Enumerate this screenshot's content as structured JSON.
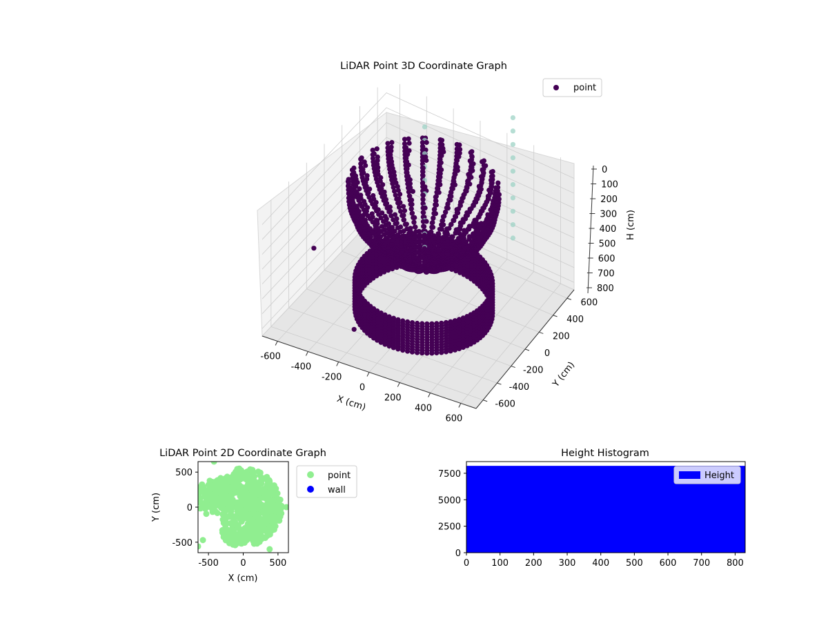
{
  "colors": {
    "point3d": "#440154",
    "point3d_aux": "#9ed3c5",
    "point2d": "#90ee90",
    "wall": "#0000ff",
    "hist": "#0000ff",
    "pane": "#f2f2f2",
    "grid": "#cccccc"
  },
  "chart_data": [
    {
      "type": "scatter",
      "projection": "3d",
      "title": "LiDAR Point 3D Coordinate Graph",
      "xlabel": "X (cm)",
      "ylabel": "Y (cm)",
      "zlabel": "H (cm)",
      "xlim": [
        -700,
        700
      ],
      "ylim": [
        -700,
        700
      ],
      "zlim": [
        0,
        850
      ],
      "z_inverted": true,
      "xticks": [
        "-600",
        "-400",
        "-200",
        "0",
        "200",
        "400",
        "600"
      ],
      "yticks": [
        "-600",
        "-400",
        "-200",
        "0",
        "200",
        "400",
        "600"
      ],
      "zticks": [
        "0",
        "100",
        "200",
        "300",
        "400",
        "500",
        "600",
        "700",
        "800"
      ],
      "legend": {
        "placement": "upper-right",
        "entries": [
          "point"
        ]
      },
      "grid": true,
      "series": [
        {
          "name": "point",
          "description": "dense curved strips rising from a ring of radius ~450 cm around the origin, plus a low cylindrical wall band",
          "ring_radius": 450,
          "strip_count": 26,
          "wall_radius": 420,
          "wall_height_range": [
            650,
            850
          ],
          "outliers": [
            [
              -680,
              -150,
              600
            ],
            [
              -560,
              120,
              540
            ],
            [
              -420,
              260,
              560
            ],
            [
              -250,
              -420,
              820
            ],
            [
              -180,
              -380,
              790
            ]
          ]
        },
        {
          "name": "",
          "description": "sparse vertical columns of light points",
          "columns": [
            [
              0,
              0
            ],
            [
              420,
              380
            ]
          ],
          "column_height_range": [
            0,
            850
          ]
        }
      ]
    },
    {
      "type": "scatter",
      "title": "LiDAR Point 2D Coordinate Graph",
      "xlabel": "X (cm)",
      "ylabel": "Y (cm)",
      "xlim": [
        -650,
        650
      ],
      "ylim": [
        -650,
        650
      ],
      "xticks": [
        "-500",
        "0",
        "500"
      ],
      "yticks": [
        "500",
        "0",
        "-500"
      ],
      "legend": {
        "placement": "outside-right",
        "entries": [
          "point",
          "wall"
        ]
      },
      "series": [
        {
          "name": "point",
          "region": "disc of radius ~560 cm centred near (0, 0) plus a spur toward negative x"
        },
        {
          "name": "wall",
          "points": []
        }
      ]
    },
    {
      "type": "bar",
      "title": "Height Histogram",
      "xlabel": "",
      "ylabel": "",
      "xlim": [
        0,
        830
      ],
      "ylim": [
        0,
        8600
      ],
      "xticks": [
        "0",
        "100",
        "200",
        "300",
        "400",
        "500",
        "600",
        "700",
        "800"
      ],
      "yticks": [
        "0",
        "2500",
        "5000",
        "7500"
      ],
      "legend": {
        "placement": "upper-right",
        "entries": [
          "Height"
        ]
      },
      "series": [
        {
          "name": "Height",
          "bin_range": [
            0,
            830
          ],
          "count": 8200
        }
      ]
    }
  ]
}
